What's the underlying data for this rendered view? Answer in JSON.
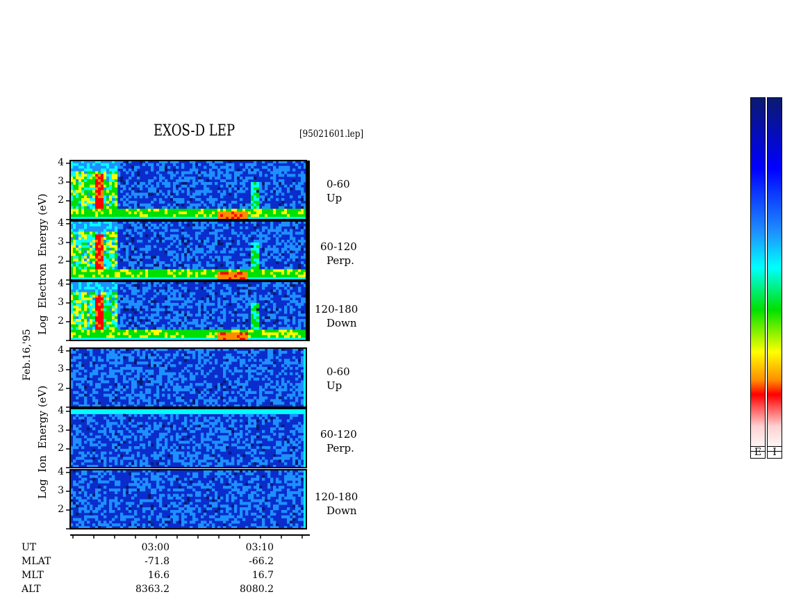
{
  "title": "EXOS-D LEP",
  "file_label": "[95021601.lep]",
  "date_label": "Feb.16,'95",
  "colorbar_labels": [
    "E",
    "I"
  ],
  "chart_data": {
    "type": "heatmap",
    "panel_groups": [
      {
        "species": "Electron",
        "ylabel_words": [
          "Log",
          "Electron",
          "Energy",
          "(eV)"
        ],
        "panels": [
          {
            "pitch_range": "0-60",
            "direction": "Up",
            "yticks": [
              "4",
              "3",
              "2"
            ]
          },
          {
            "pitch_range": "60-120",
            "direction": "Perp.",
            "yticks": [
              "4",
              "3",
              "2"
            ]
          },
          {
            "pitch_range": "120-180",
            "direction": "Down",
            "yticks": [
              "4",
              "3",
              "2"
            ]
          }
        ]
      },
      {
        "species": "Ion",
        "ylabel_words": [
          "Log",
          "Ion",
          "Energy",
          "(eV)"
        ],
        "panels": [
          {
            "pitch_range": "0-60",
            "direction": "Up",
            "yticks": [
              "4",
              "3",
              "2"
            ]
          },
          {
            "pitch_range": "60-120",
            "direction": "Perp.",
            "yticks": [
              "4",
              "3",
              "2"
            ]
          },
          {
            "pitch_range": "120-180",
            "direction": "Down",
            "yticks": [
              "4",
              "3",
              "2"
            ]
          }
        ]
      }
    ],
    "x_ticks": [
      {
        "UT": "03:00",
        "MLAT": "-71.8",
        "MLT": "16.6",
        "ALT": "8363.2"
      },
      {
        "UT": "03:10",
        "MLAT": "-66.2",
        "MLT": "16.7",
        "ALT": "8080.2"
      }
    ],
    "row_labels": [
      "UT",
      "MLAT",
      "MLT",
      "ALT"
    ],
    "colorscale": [
      "#0a1a6e",
      "#0000ff",
      "#1e90ff",
      "#00ffff",
      "#00e000",
      "#ffff00",
      "#ff8c00",
      "#ff0000",
      "#ffd0d0"
    ]
  }
}
